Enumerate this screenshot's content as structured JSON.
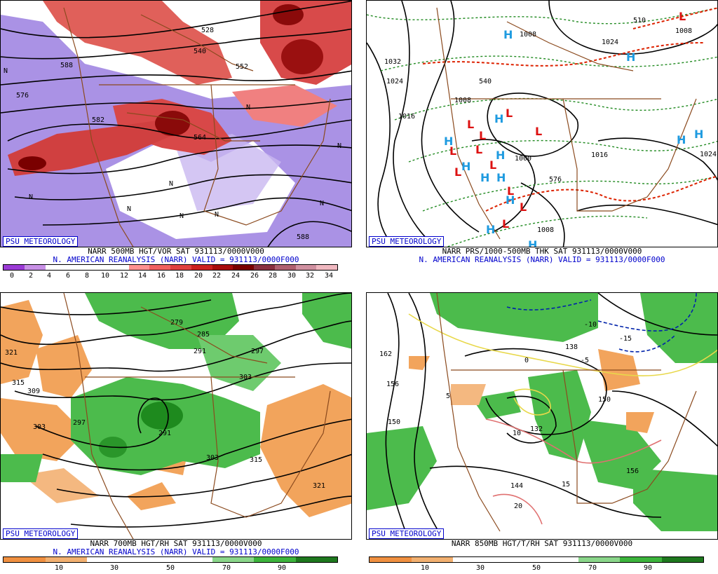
{
  "credit": "PSU METEOROLOGY",
  "reanalysis": "N. AMERICAN REANALYSIS (NARR) VALID = 931113/0000F000",
  "panels": [
    {
      "id": "500mb",
      "title": "NARR 500MB HGT/VOR SAT 931113/0000V000",
      "colorbar": {
        "colors": [
          "#9b3bd6",
          "#c890e6",
          "#ffffff",
          "#ffffff",
          "#ffffff",
          "#ffffff",
          "#ff9090",
          "#f06060",
          "#e04040",
          "#cc2020",
          "#a80c0c",
          "#7a0000",
          "#8a3040",
          "#b06070",
          "#d090a0",
          "#f0b8c0"
        ],
        "ticks": [
          "0",
          "2",
          "4",
          "6",
          "8",
          "10",
          "12",
          "14",
          "16",
          "18",
          "20",
          "22",
          "24",
          "26",
          "28",
          "30",
          "32",
          "34"
        ]
      },
      "contour_labels": [
        "576",
        "528",
        "540",
        "552",
        "588",
        "582",
        "564",
        "588",
        "N",
        "N",
        "N",
        "N",
        "N",
        "N",
        "N",
        "N",
        "N"
      ]
    },
    {
      "id": "pressure",
      "title": "NARR PRS/1000-500MB THK SAT 931113/0000V000",
      "contour_labels": [
        "1032",
        "1024",
        "1016",
        "1008",
        "1008",
        "1000",
        "1008",
        "1016",
        "1024",
        "1024",
        "1008",
        "576",
        "540",
        "510"
      ],
      "high_letter": "H",
      "low_letter": "L"
    },
    {
      "id": "700mb",
      "title": "NARR 700MB HGT/RH SAT 931113/0000V000",
      "colorbar": {
        "colors": [
          "#f09040",
          "#f2b070",
          "#ffffff",
          "#ffffff",
          "#ffffff",
          "#8ad68a",
          "#3cb43c",
          "#1e781e"
        ],
        "ticks": [
          "10",
          "30",
          "50",
          "70",
          "90"
        ]
      },
      "contour_labels": [
        "279",
        "285",
        "291",
        "297",
        "303",
        "321",
        "315",
        "309",
        "303",
        "297",
        "291",
        "303",
        "315",
        "321"
      ]
    },
    {
      "id": "850mb",
      "title": "NARR 850MB HGT/T/RH SAT 931113/0000V000",
      "colorbar": {
        "colors": [
          "#f09040",
          "#f2b070",
          "#ffffff",
          "#ffffff",
          "#ffffff",
          "#8ad68a",
          "#3cb43c",
          "#1e781e"
        ],
        "ticks": [
          "10",
          "30",
          "50",
          "70",
          "90"
        ]
      },
      "contour_labels": [
        "162",
        "156",
        "150",
        "144",
        "132",
        "138",
        "150",
        "156",
        "-15",
        "-10",
        "-5",
        "0",
        "5",
        "10",
        "15",
        "20"
      ]
    }
  ]
}
